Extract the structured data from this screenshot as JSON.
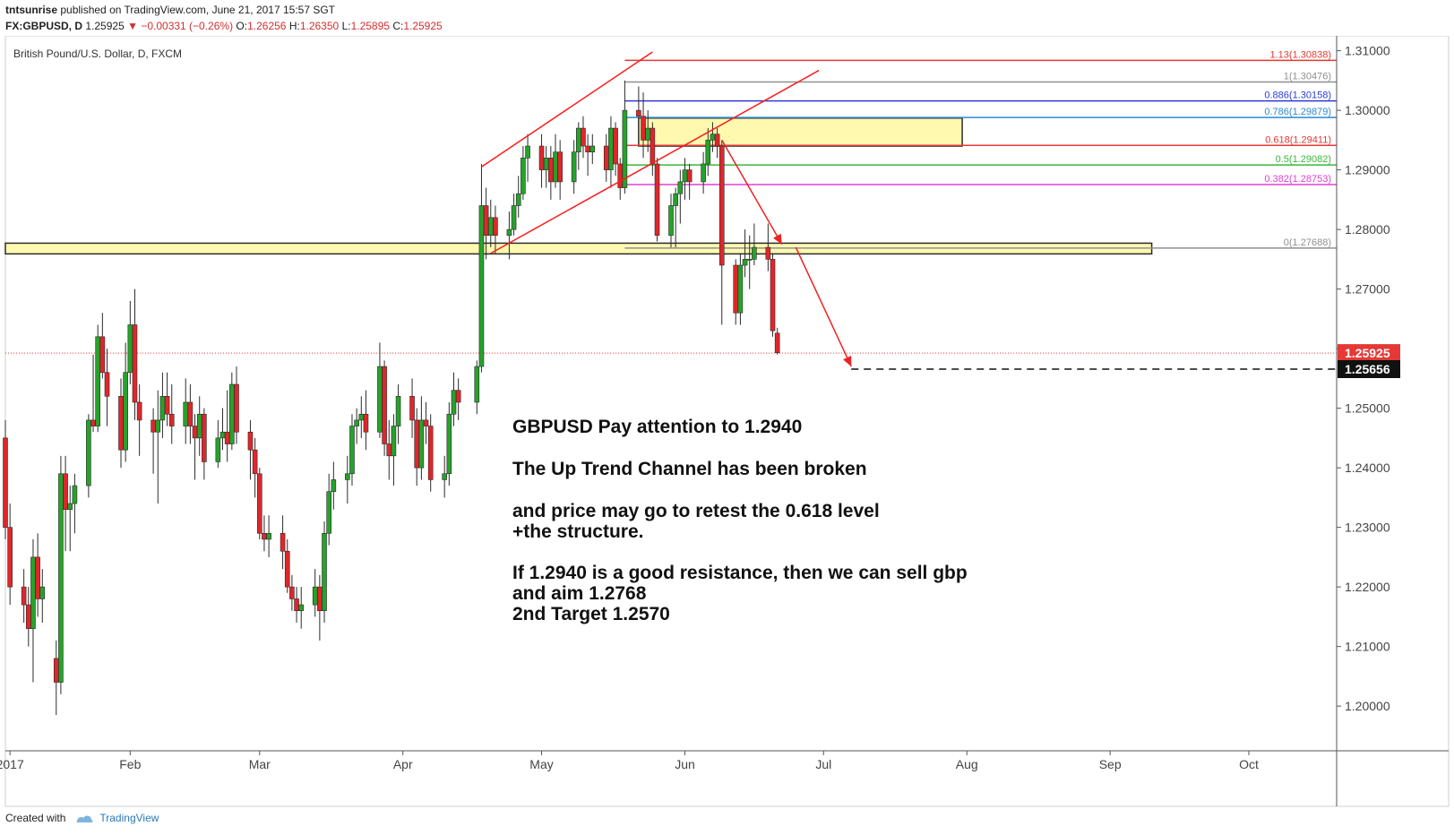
{
  "header": {
    "user": "tntsunrise",
    "published_text": "published on TradingView.com, June 21, 2017 15:57 SGT",
    "symbol": "FX:GBPUSD, D",
    "last": "1.25925",
    "change": "−0.00331 (−0.26%)",
    "o_label": "O:",
    "o_value": "1.26256",
    "h_label": "H:",
    "h_value": "1.26350",
    "l_label": "L:",
    "l_value": "1.25895",
    "c_label": "C:",
    "c_value": "1.25925"
  },
  "footer": {
    "created_with": "Created with",
    "brand": "TradingView"
  },
  "colors": {
    "up": "#26a22b",
    "down": "#e0262b",
    "zone_fill": "#fff9b0",
    "zone_stroke": "#2b2b2b",
    "channel": "#ff1a1a",
    "arrow": "#ee2222",
    "axis": "#555555"
  },
  "chart_data": {
    "type": "candlestick",
    "title": "British Pound/U.S. Dollar, D, FXCM",
    "y_range": [
      1.1925,
      1.3125
    ],
    "y_ticks": [
      "1.31000",
      "1.30000",
      "1.29000",
      "1.28000",
      "1.27000",
      "1.26000",
      "1.25000",
      "1.24000",
      "1.23000",
      "1.22000",
      "1.21000",
      "1.20000"
    ],
    "x_ticks": [
      "2017",
      "Feb",
      "Mar",
      "Apr",
      "May",
      "Jun",
      "Jul",
      "Aug",
      "Sep",
      "Oct"
    ],
    "x_tick_dates": [
      "2017-01-06",
      "2017-02-01",
      "2017-03-01",
      "2017-04-01",
      "2017-05-01",
      "2017-06-01",
      "2017-07-01",
      "2017-08-01",
      "2017-09-01",
      "2017-10-01"
    ],
    "date_range": [
      "2017-01-05",
      "2017-10-20"
    ],
    "candles": [
      {
        "d": "2017-01-05",
        "o": 1.245,
        "h": 1.248,
        "l": 1.228,
        "c": 1.23
      },
      {
        "d": "2017-01-06",
        "o": 1.23,
        "h": 1.234,
        "l": 1.217,
        "c": 1.22
      },
      {
        "d": "2017-01-09",
        "o": 1.22,
        "h": 1.223,
        "l": 1.214,
        "c": 1.217
      },
      {
        "d": "2017-01-10",
        "o": 1.217,
        "h": 1.22,
        "l": 1.21,
        "c": 1.213
      },
      {
        "d": "2017-01-11",
        "o": 1.213,
        "h": 1.228,
        "l": 1.204,
        "c": 1.225
      },
      {
        "d": "2017-01-12",
        "o": 1.225,
        "h": 1.229,
        "l": 1.215,
        "c": 1.218
      },
      {
        "d": "2017-01-13",
        "o": 1.218,
        "h": 1.223,
        "l": 1.214,
        "c": 1.22
      },
      {
        "d": "2017-01-16",
        "o": 1.208,
        "h": 1.211,
        "l": 1.1985,
        "c": 1.204
      },
      {
        "d": "2017-01-17",
        "o": 1.204,
        "h": 1.242,
        "l": 1.202,
        "c": 1.239
      },
      {
        "d": "2017-01-18",
        "o": 1.239,
        "h": 1.242,
        "l": 1.226,
        "c": 1.233
      },
      {
        "d": "2017-01-19",
        "o": 1.233,
        "h": 1.237,
        "l": 1.226,
        "c": 1.234
      },
      {
        "d": "2017-01-20",
        "o": 1.234,
        "h": 1.239,
        "l": 1.229,
        "c": 1.237
      },
      {
        "d": "2017-01-23",
        "o": 1.237,
        "h": 1.249,
        "l": 1.235,
        "c": 1.248
      },
      {
        "d": "2017-01-24",
        "o": 1.248,
        "h": 1.259,
        "l": 1.246,
        "c": 1.247
      },
      {
        "d": "2017-01-25",
        "o": 1.247,
        "h": 1.264,
        "l": 1.246,
        "c": 1.262
      },
      {
        "d": "2017-01-26",
        "o": 1.262,
        "h": 1.266,
        "l": 1.255,
        "c": 1.256
      },
      {
        "d": "2017-01-27",
        "o": 1.256,
        "h": 1.26,
        "l": 1.247,
        "c": 1.252
      },
      {
        "d": "2017-01-30",
        "o": 1.252,
        "h": 1.255,
        "l": 1.24,
        "c": 1.243
      },
      {
        "d": "2017-01-31",
        "o": 1.243,
        "h": 1.261,
        "l": 1.241,
        "c": 1.256
      },
      {
        "d": "2017-02-01",
        "o": 1.256,
        "h": 1.268,
        "l": 1.254,
        "c": 1.264
      },
      {
        "d": "2017-02-02",
        "o": 1.264,
        "h": 1.27,
        "l": 1.248,
        "c": 1.251
      },
      {
        "d": "2017-02-03",
        "o": 1.251,
        "h": 1.254,
        "l": 1.242,
        "c": 1.248
      },
      {
        "d": "2017-02-06",
        "o": 1.248,
        "h": 1.25,
        "l": 1.239,
        "c": 1.246
      },
      {
        "d": "2017-02-07",
        "o": 1.246,
        "h": 1.253,
        "l": 1.234,
        "c": 1.248
      },
      {
        "d": "2017-02-08",
        "o": 1.248,
        "h": 1.256,
        "l": 1.245,
        "c": 1.252
      },
      {
        "d": "2017-02-09",
        "o": 1.252,
        "h": 1.256,
        "l": 1.247,
        "c": 1.249
      },
      {
        "d": "2017-02-10",
        "o": 1.249,
        "h": 1.254,
        "l": 1.244,
        "c": 1.247
      },
      {
        "d": "2017-02-13",
        "o": 1.247,
        "h": 1.255,
        "l": 1.244,
        "c": 1.251
      },
      {
        "d": "2017-02-14",
        "o": 1.251,
        "h": 1.254,
        "l": 1.244,
        "c": 1.247
      },
      {
        "d": "2017-02-15",
        "o": 1.247,
        "h": 1.249,
        "l": 1.238,
        "c": 1.245
      },
      {
        "d": "2017-02-16",
        "o": 1.245,
        "h": 1.252,
        "l": 1.242,
        "c": 1.249
      },
      {
        "d": "2017-02-17",
        "o": 1.249,
        "h": 1.25,
        "l": 1.238,
        "c": 1.241
      },
      {
        "d": "2017-02-20",
        "o": 1.241,
        "h": 1.248,
        "l": 1.24,
        "c": 1.245
      },
      {
        "d": "2017-02-21",
        "o": 1.245,
        "h": 1.25,
        "l": 1.243,
        "c": 1.246
      },
      {
        "d": "2017-02-22",
        "o": 1.246,
        "h": 1.253,
        "l": 1.241,
        "c": 1.244
      },
      {
        "d": "2017-02-23",
        "o": 1.244,
        "h": 1.256,
        "l": 1.243,
        "c": 1.254
      },
      {
        "d": "2017-02-24",
        "o": 1.254,
        "h": 1.257,
        "l": 1.244,
        "c": 1.246
      },
      {
        "d": "2017-02-27",
        "o": 1.246,
        "h": 1.248,
        "l": 1.238,
        "c": 1.243
      },
      {
        "d": "2017-02-28",
        "o": 1.243,
        "h": 1.245,
        "l": 1.235,
        "c": 1.239
      },
      {
        "d": "2017-03-01",
        "o": 1.239,
        "h": 1.24,
        "l": 1.228,
        "c": 1.229
      },
      {
        "d": "2017-03-02",
        "o": 1.229,
        "h": 1.232,
        "l": 1.226,
        "c": 1.228
      },
      {
        "d": "2017-03-03",
        "o": 1.228,
        "h": 1.232,
        "l": 1.225,
        "c": 1.229
      },
      {
        "d": "2017-03-06",
        "o": 1.229,
        "h": 1.232,
        "l": 1.223,
        "c": 1.226
      },
      {
        "d": "2017-03-07",
        "o": 1.226,
        "h": 1.228,
        "l": 1.219,
        "c": 1.22
      },
      {
        "d": "2017-03-08",
        "o": 1.22,
        "h": 1.222,
        "l": 1.216,
        "c": 1.218
      },
      {
        "d": "2017-03-09",
        "o": 1.218,
        "h": 1.22,
        "l": 1.214,
        "c": 1.216
      },
      {
        "d": "2017-03-10",
        "o": 1.216,
        "h": 1.22,
        "l": 1.213,
        "c": 1.217
      },
      {
        "d": "2017-03-13",
        "o": 1.217,
        "h": 1.223,
        "l": 1.215,
        "c": 1.22
      },
      {
        "d": "2017-03-14",
        "o": 1.22,
        "h": 1.222,
        "l": 1.211,
        "c": 1.216
      },
      {
        "d": "2017-03-15",
        "o": 1.216,
        "h": 1.231,
        "l": 1.214,
        "c": 1.229
      },
      {
        "d": "2017-03-16",
        "o": 1.229,
        "h": 1.239,
        "l": 1.227,
        "c": 1.236
      },
      {
        "d": "2017-03-17",
        "o": 1.236,
        "h": 1.241,
        "l": 1.233,
        "c": 1.238
      },
      {
        "d": "2017-03-20",
        "o": 1.238,
        "h": 1.242,
        "l": 1.234,
        "c": 1.239
      },
      {
        "d": "2017-03-21",
        "o": 1.239,
        "h": 1.249,
        "l": 1.237,
        "c": 1.247
      },
      {
        "d": "2017-03-22",
        "o": 1.247,
        "h": 1.25,
        "l": 1.244,
        "c": 1.248
      },
      {
        "d": "2017-03-23",
        "o": 1.248,
        "h": 1.252,
        "l": 1.245,
        "c": 1.249
      },
      {
        "d": "2017-03-24",
        "o": 1.249,
        "h": 1.253,
        "l": 1.243,
        "c": 1.246
      },
      {
        "d": "2017-03-27",
        "o": 1.246,
        "h": 1.261,
        "l": 1.245,
        "c": 1.257
      },
      {
        "d": "2017-03-28",
        "o": 1.257,
        "h": 1.258,
        "l": 1.242,
        "c": 1.244
      },
      {
        "d": "2017-03-29",
        "o": 1.244,
        "h": 1.248,
        "l": 1.238,
        "c": 1.242
      },
      {
        "d": "2017-03-30",
        "o": 1.242,
        "h": 1.249,
        "l": 1.237,
        "c": 1.247
      },
      {
        "d": "2017-03-31",
        "o": 1.247,
        "h": 1.254,
        "l": 1.244,
        "c": 1.252
      },
      {
        "d": "2017-04-03",
        "o": 1.252,
        "h": 1.255,
        "l": 1.245,
        "c": 1.248
      },
      {
        "d": "2017-04-04",
        "o": 1.248,
        "h": 1.25,
        "l": 1.237,
        "c": 1.24
      },
      {
        "d": "2017-04-05",
        "o": 1.24,
        "h": 1.252,
        "l": 1.238,
        "c": 1.248
      },
      {
        "d": "2017-04-06",
        "o": 1.248,
        "h": 1.251,
        "l": 1.244,
        "c": 1.247
      },
      {
        "d": "2017-04-07",
        "o": 1.247,
        "h": 1.249,
        "l": 1.236,
        "c": 1.238
      },
      {
        "d": "2017-04-10",
        "o": 1.238,
        "h": 1.242,
        "l": 1.235,
        "c": 1.239
      },
      {
        "d": "2017-04-11",
        "o": 1.239,
        "h": 1.251,
        "l": 1.237,
        "c": 1.249
      },
      {
        "d": "2017-04-12",
        "o": 1.249,
        "h": 1.256,
        "l": 1.247,
        "c": 1.253
      },
      {
        "d": "2017-04-13",
        "o": 1.253,
        "h": 1.255,
        "l": 1.248,
        "c": 1.251
      },
      {
        "d": "2017-04-17",
        "o": 1.251,
        "h": 1.258,
        "l": 1.249,
        "c": 1.257
      },
      {
        "d": "2017-04-18",
        "o": 1.257,
        "h": 1.291,
        "l": 1.256,
        "c": 1.284
      },
      {
        "d": "2017-04-19",
        "o": 1.284,
        "h": 1.287,
        "l": 1.275,
        "c": 1.279
      },
      {
        "d": "2017-04-20",
        "o": 1.279,
        "h": 1.285,
        "l": 1.277,
        "c": 1.282
      },
      {
        "d": "2017-04-21",
        "o": 1.282,
        "h": 1.284,
        "l": 1.276,
        "c": 1.279
      },
      {
        "d": "2017-04-24",
        "o": 1.279,
        "h": 1.283,
        "l": 1.275,
        "c": 1.28
      },
      {
        "d": "2017-04-25",
        "o": 1.28,
        "h": 1.286,
        "l": 1.279,
        "c": 1.284
      },
      {
        "d": "2017-04-26",
        "o": 1.284,
        "h": 1.289,
        "l": 1.282,
        "c": 1.286
      },
      {
        "d": "2017-04-27",
        "o": 1.286,
        "h": 1.294,
        "l": 1.285,
        "c": 1.292
      },
      {
        "d": "2017-04-28",
        "o": 1.292,
        "h": 1.296,
        "l": 1.288,
        "c": 1.294
      },
      {
        "d": "2017-05-01",
        "o": 1.294,
        "h": 1.296,
        "l": 1.287,
        "c": 1.29
      },
      {
        "d": "2017-05-02",
        "o": 1.29,
        "h": 1.294,
        "l": 1.287,
        "c": 1.292
      },
      {
        "d": "2017-05-03",
        "o": 1.292,
        "h": 1.294,
        "l": 1.285,
        "c": 1.288
      },
      {
        "d": "2017-05-04",
        "o": 1.288,
        "h": 1.296,
        "l": 1.287,
        "c": 1.293
      },
      {
        "d": "2017-05-05",
        "o": 1.293,
        "h": 1.295,
        "l": 1.285,
        "c": 1.288
      },
      {
        "d": "2017-05-08",
        "o": 1.288,
        "h": 1.295,
        "l": 1.286,
        "c": 1.293
      },
      {
        "d": "2017-05-09",
        "o": 1.293,
        "h": 1.298,
        "l": 1.29,
        "c": 1.297
      },
      {
        "d": "2017-05-10",
        "o": 1.297,
        "h": 1.299,
        "l": 1.292,
        "c": 1.294
      },
      {
        "d": "2017-05-11",
        "o": 1.294,
        "h": 1.296,
        "l": 1.289,
        "c": 1.293
      },
      {
        "d": "2017-05-12",
        "o": 1.293,
        "h": 1.296,
        "l": 1.291,
        "c": 1.294
      },
      {
        "d": "2017-05-15",
        "o": 1.294,
        "h": 1.296,
        "l": 1.288,
        "c": 1.29
      },
      {
        "d": "2017-05-16",
        "o": 1.29,
        "h": 1.299,
        "l": 1.287,
        "c": 1.297
      },
      {
        "d": "2017-05-17",
        "o": 1.297,
        "h": 1.298,
        "l": 1.289,
        "c": 1.291
      },
      {
        "d": "2017-05-18",
        "o": 1.291,
        "h": 1.292,
        "l": 1.285,
        "c": 1.287
      },
      {
        "d": "2017-05-19",
        "o": 1.287,
        "h": 1.305,
        "l": 1.286,
        "c": 1.3
      },
      {
        "d": "2017-05-22",
        "o": 1.3,
        "h": 1.304,
        "l": 1.295,
        "c": 1.299
      },
      {
        "d": "2017-05-23",
        "o": 1.299,
        "h": 1.303,
        "l": 1.292,
        "c": 1.295
      },
      {
        "d": "2017-05-24",
        "o": 1.295,
        "h": 1.3,
        "l": 1.293,
        "c": 1.297
      },
      {
        "d": "2017-05-25",
        "o": 1.297,
        "h": 1.298,
        "l": 1.289,
        "c": 1.291
      },
      {
        "d": "2017-05-26",
        "o": 1.291,
        "h": 1.292,
        "l": 1.278,
        "c": 1.279
      },
      {
        "d": "2017-05-29",
        "o": 1.279,
        "h": 1.286,
        "l": 1.277,
        "c": 1.284
      },
      {
        "d": "2017-05-30",
        "o": 1.284,
        "h": 1.287,
        "l": 1.277,
        "c": 1.286
      },
      {
        "d": "2017-05-31",
        "o": 1.286,
        "h": 1.29,
        "l": 1.281,
        "c": 1.288
      },
      {
        "d": "2017-06-01",
        "o": 1.288,
        "h": 1.292,
        "l": 1.285,
        "c": 1.29
      },
      {
        "d": "2017-06-02",
        "o": 1.29,
        "h": 1.291,
        "l": 1.285,
        "c": 1.288
      },
      {
        "d": "2017-06-05",
        "o": 1.288,
        "h": 1.293,
        "l": 1.286,
        "c": 1.291
      },
      {
        "d": "2017-06-06",
        "o": 1.291,
        "h": 1.297,
        "l": 1.289,
        "c": 1.295
      },
      {
        "d": "2017-06-07",
        "o": 1.295,
        "h": 1.298,
        "l": 1.293,
        "c": 1.296
      },
      {
        "d": "2017-06-08",
        "o": 1.296,
        "h": 1.297,
        "l": 1.292,
        "c": 1.294
      },
      {
        "d": "2017-06-09",
        "o": 1.294,
        "h": 1.295,
        "l": 1.264,
        "c": 1.274
      },
      {
        "d": "2017-06-12",
        "o": 1.274,
        "h": 1.275,
        "l": 1.264,
        "c": 1.266
      },
      {
        "d": "2017-06-13",
        "o": 1.266,
        "h": 1.276,
        "l": 1.264,
        "c": 1.274
      },
      {
        "d": "2017-06-14",
        "o": 1.274,
        "h": 1.28,
        "l": 1.272,
        "c": 1.275
      },
      {
        "d": "2017-06-15",
        "o": 1.275,
        "h": 1.279,
        "l": 1.27,
        "c": 1.275
      },
      {
        "d": "2017-06-16",
        "o": 1.275,
        "h": 1.281,
        "l": 1.274,
        "c": 1.277
      },
      {
        "d": "2017-06-19",
        "o": 1.277,
        "h": 1.281,
        "l": 1.273,
        "c": 1.275
      },
      {
        "d": "2017-06-20",
        "o": 1.275,
        "h": 1.276,
        "l": 1.262,
        "c": 1.263
      },
      {
        "d": "2017-06-21",
        "o": 1.2626,
        "h": 1.2635,
        "l": 1.259,
        "c": 1.2593
      }
    ],
    "fib_levels": [
      {
        "label": "1.13(1.30838)",
        "value": 1.30838,
        "color": "#e53935"
      },
      {
        "label": "1(1.30476)",
        "value": 1.30476,
        "color": "#909090"
      },
      {
        "label": "0.886(1.30158)",
        "value": 1.30158,
        "color": "#2d3bd6"
      },
      {
        "label": "0.786(1.29879)",
        "value": 1.29879,
        "color": "#2b8ad6"
      },
      {
        "label": "0.618(1.29411)",
        "value": 1.29411,
        "color": "#e53935"
      },
      {
        "label": "0.5(1.29082)",
        "value": 1.29082,
        "color": "#3ab83a"
      },
      {
        "label": "0.382(1.28753)",
        "value": 1.28753,
        "color": "#e040d0"
      },
      {
        "label": "0(1.27688)",
        "value": 1.27688,
        "color": "#909090"
      }
    ],
    "fib_date_range": [
      "2017-05-19",
      "2017-10-20"
    ],
    "zones": [
      {
        "name": "resistance-zone",
        "from": "2017-05-22",
        "to": "2017-07-31",
        "top": 1.2987,
        "bottom": 1.294
      },
      {
        "name": "structure-zone",
        "from": "2017-01-05",
        "to": "2017-09-10",
        "top": 1.2777,
        "bottom": 1.2759
      }
    ],
    "channel": [
      {
        "from": [
          "2017-04-18",
          1.2905
        ],
        "to": [
          "2017-05-25",
          1.3098
        ]
      },
      {
        "from": [
          "2017-04-20",
          1.276
        ],
        "to": [
          "2017-06-30",
          1.3067
        ]
      }
    ],
    "arrows": [
      {
        "from": [
          "2017-06-09",
          1.295
        ],
        "to": [
          "2017-06-22",
          1.2775
        ]
      },
      {
        "from": [
          "2017-06-25",
          1.277
        ],
        "to": [
          "2017-07-07",
          1.257
        ]
      }
    ],
    "target_line": {
      "value": 1.25656,
      "from": "2017-07-07"
    },
    "current_price": 1.25925,
    "price_labels": [
      {
        "text": "1.25925",
        "value": 1.25925,
        "bg": "#e53935"
      },
      {
        "text": "1.25656",
        "value": 1.25656,
        "bg": "#111111"
      }
    ],
    "annotation": [
      "GBPUSD Pay attention to 1.2940",
      "The Up Trend Channel has been broken",
      "and price may go to retest the 0.618 level",
      "+the structure.",
      "If 1.2940 is a good resistance, then we can sell gbp",
      "and aim 1.2768",
      "2nd Target 1.2570"
    ]
  }
}
